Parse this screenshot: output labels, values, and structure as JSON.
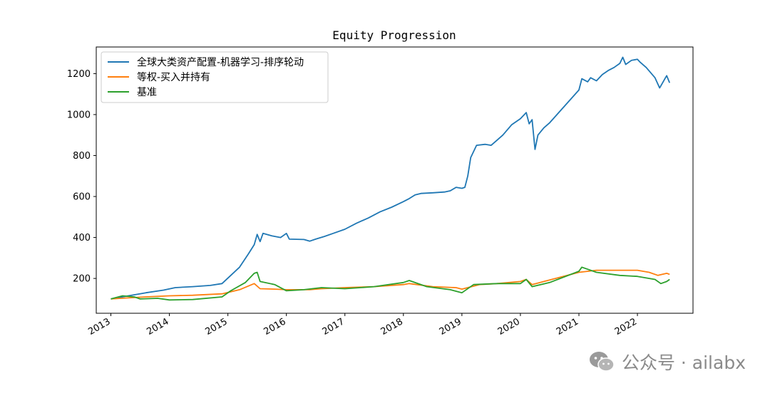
{
  "chart_data": {
    "type": "line",
    "title": "Equity Progression",
    "xlabel": "",
    "ylabel": "",
    "xlim": [
      2012.75,
      2022.95
    ],
    "ylim": [
      30,
      1330
    ],
    "x_ticks": [
      2013,
      2014,
      2015,
      2016,
      2017,
      2018,
      2019,
      2020,
      2021,
      2022
    ],
    "x_tick_labels": [
      "2013",
      "2014",
      "2015",
      "2016",
      "2017",
      "2018",
      "2019",
      "2020",
      "2021",
      "2022"
    ],
    "y_ticks": [
      200,
      400,
      600,
      800,
      1000,
      1200
    ],
    "y_tick_labels": [
      "200",
      "400",
      "600",
      "800",
      "1000",
      "1200"
    ],
    "legend_position": "upper-left",
    "grid": false,
    "series": [
      {
        "name": "全球大类资产配置-机器学习-排序轮动",
        "color": "#1f77b4",
        "points": [
          [
            2013.0,
            100
          ],
          [
            2013.3,
            115
          ],
          [
            2013.6,
            130
          ],
          [
            2013.9,
            143
          ],
          [
            2014.1,
            155
          ],
          [
            2014.4,
            160
          ],
          [
            2014.7,
            166
          ],
          [
            2014.9,
            175
          ],
          [
            2015.05,
            215
          ],
          [
            2015.2,
            255
          ],
          [
            2015.35,
            320
          ],
          [
            2015.45,
            365
          ],
          [
            2015.5,
            415
          ],
          [
            2015.55,
            380
          ],
          [
            2015.6,
            420
          ],
          [
            2015.75,
            408
          ],
          [
            2015.9,
            400
          ],
          [
            2016.0,
            420
          ],
          [
            2016.05,
            392
          ],
          [
            2016.3,
            390
          ],
          [
            2016.4,
            382
          ],
          [
            2016.5,
            392
          ],
          [
            2016.65,
            405
          ],
          [
            2016.8,
            420
          ],
          [
            2017.0,
            440
          ],
          [
            2017.2,
            470
          ],
          [
            2017.4,
            495
          ],
          [
            2017.6,
            525
          ],
          [
            2017.8,
            548
          ],
          [
            2018.0,
            575
          ],
          [
            2018.1,
            590
          ],
          [
            2018.2,
            608
          ],
          [
            2018.3,
            615
          ],
          [
            2018.5,
            618
          ],
          [
            2018.7,
            622
          ],
          [
            2018.8,
            628
          ],
          [
            2018.9,
            645
          ],
          [
            2019.0,
            640
          ],
          [
            2019.05,
            645
          ],
          [
            2019.1,
            700
          ],
          [
            2019.15,
            790
          ],
          [
            2019.25,
            850
          ],
          [
            2019.4,
            855
          ],
          [
            2019.5,
            850
          ],
          [
            2019.6,
            875
          ],
          [
            2019.7,
            900
          ],
          [
            2019.85,
            950
          ],
          [
            2020.0,
            980
          ],
          [
            2020.1,
            1010
          ],
          [
            2020.15,
            955
          ],
          [
            2020.2,
            975
          ],
          [
            2020.25,
            830
          ],
          [
            2020.3,
            900
          ],
          [
            2020.4,
            935
          ],
          [
            2020.5,
            960
          ],
          [
            2020.75,
            1040
          ],
          [
            2021.0,
            1120
          ],
          [
            2021.05,
            1175
          ],
          [
            2021.15,
            1160
          ],
          [
            2021.2,
            1180
          ],
          [
            2021.3,
            1165
          ],
          [
            2021.4,
            1195
          ],
          [
            2021.5,
            1215
          ],
          [
            2021.6,
            1230
          ],
          [
            2021.7,
            1250
          ],
          [
            2021.75,
            1280
          ],
          [
            2021.8,
            1245
          ],
          [
            2021.9,
            1265
          ],
          [
            2022.0,
            1270
          ],
          [
            2022.05,
            1255
          ],
          [
            2022.15,
            1230
          ],
          [
            2022.3,
            1180
          ],
          [
            2022.38,
            1130
          ],
          [
            2022.42,
            1150
          ],
          [
            2022.47,
            1175
          ],
          [
            2022.5,
            1190
          ],
          [
            2022.55,
            1155
          ]
        ]
      },
      {
        "name": "等权-买入并持有",
        "color": "#ff7f0e",
        "points": [
          [
            2013.0,
            100
          ],
          [
            2013.3,
            105
          ],
          [
            2013.6,
            110
          ],
          [
            2014.0,
            115
          ],
          [
            2014.4,
            118
          ],
          [
            2014.9,
            125
          ],
          [
            2015.2,
            145
          ],
          [
            2015.45,
            175
          ],
          [
            2015.55,
            150
          ],
          [
            2015.8,
            148
          ],
          [
            2016.0,
            145
          ],
          [
            2016.4,
            145
          ],
          [
            2016.6,
            150
          ],
          [
            2017.0,
            155
          ],
          [
            2017.5,
            160
          ],
          [
            2018.0,
            170
          ],
          [
            2018.1,
            175
          ],
          [
            2018.5,
            160
          ],
          [
            2018.9,
            155
          ],
          [
            2019.0,
            148
          ],
          [
            2019.3,
            170
          ],
          [
            2019.6,
            175
          ],
          [
            2020.0,
            185
          ],
          [
            2020.1,
            195
          ],
          [
            2020.2,
            170
          ],
          [
            2020.4,
            185
          ],
          [
            2021.0,
            230
          ],
          [
            2021.3,
            240
          ],
          [
            2021.6,
            240
          ],
          [
            2022.0,
            240
          ],
          [
            2022.2,
            230
          ],
          [
            2022.35,
            215
          ],
          [
            2022.5,
            225
          ],
          [
            2022.55,
            220
          ]
        ]
      },
      {
        "name": "基准",
        "color": "#2ca02c",
        "points": [
          [
            2013.0,
            100
          ],
          [
            2013.2,
            115
          ],
          [
            2013.4,
            110
          ],
          [
            2013.5,
            100
          ],
          [
            2013.8,
            103
          ],
          [
            2014.0,
            95
          ],
          [
            2014.4,
            97
          ],
          [
            2014.9,
            110
          ],
          [
            2015.05,
            140
          ],
          [
            2015.3,
            180
          ],
          [
            2015.45,
            225
          ],
          [
            2015.5,
            230
          ],
          [
            2015.55,
            185
          ],
          [
            2015.8,
            170
          ],
          [
            2016.0,
            140
          ],
          [
            2016.3,
            145
          ],
          [
            2016.6,
            155
          ],
          [
            2017.0,
            150
          ],
          [
            2017.5,
            160
          ],
          [
            2018.0,
            180
          ],
          [
            2018.1,
            190
          ],
          [
            2018.4,
            160
          ],
          [
            2018.8,
            145
          ],
          [
            2019.0,
            130
          ],
          [
            2019.2,
            170
          ],
          [
            2019.6,
            175
          ],
          [
            2020.0,
            175
          ],
          [
            2020.1,
            195
          ],
          [
            2020.2,
            160
          ],
          [
            2020.5,
            180
          ],
          [
            2021.0,
            235
          ],
          [
            2021.05,
            255
          ],
          [
            2021.3,
            230
          ],
          [
            2021.7,
            215
          ],
          [
            2022.0,
            210
          ],
          [
            2022.3,
            195
          ],
          [
            2022.4,
            175
          ],
          [
            2022.5,
            185
          ],
          [
            2022.55,
            195
          ]
        ]
      }
    ]
  },
  "watermark": {
    "icon": "wechat-icon",
    "text": "公众号 · ailabx"
  }
}
